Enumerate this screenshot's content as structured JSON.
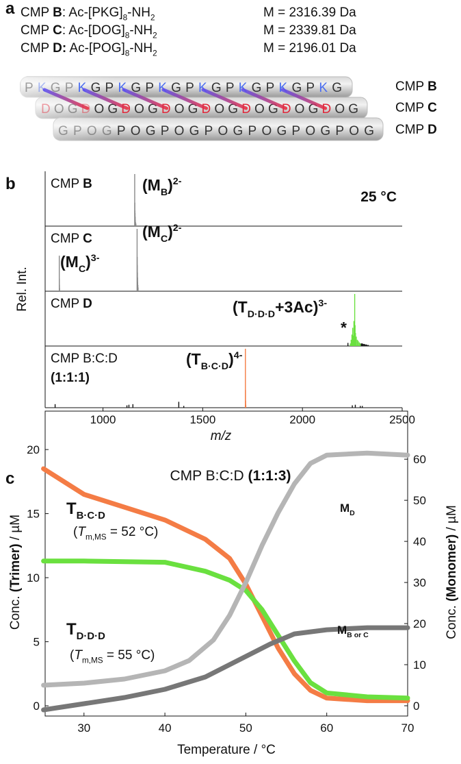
{
  "panel_labels": [
    "a",
    "b",
    "c"
  ],
  "scheme": {
    "rows": [
      {
        "label": [
          {
            "text": "CMP "
          },
          {
            "text": "B",
            "style": "bold"
          },
          {
            "text": ":  Ac-[PKG]"
          },
          {
            "text": "8",
            "style": "sub"
          },
          {
            "text": "-NH"
          },
          {
            "text": "2",
            "style": "sub"
          }
        ],
        "mass": "M = 2316.39 Da",
        "strand": "PKGPKGPKGPKGPKGPKGPKGPKG",
        "tube_label": [
          {
            "text": "CMP "
          },
          {
            "text": "B",
            "style": "bold"
          }
        ]
      },
      {
        "label": [
          {
            "text": "CMP "
          },
          {
            "text": "C",
            "style": "bold"
          },
          {
            "text": ":  Ac-[DOG]"
          },
          {
            "text": "8",
            "style": "sub"
          },
          {
            "text": "-NH"
          },
          {
            "text": "2",
            "style": "sub"
          }
        ],
        "mass": "M = 2339.81 Da",
        "strand": "DOGDOGDOGDOGDOGDOGDOGDOG",
        "tube_label": [
          {
            "text": "CMP "
          },
          {
            "text": "C",
            "style": "bold"
          }
        ]
      },
      {
        "label": [
          {
            "text": "CMP "
          },
          {
            "text": "D:",
            "style": "bold"
          },
          {
            "text": "  Ac-[POG]"
          },
          {
            "text": "8",
            "style": "sub"
          },
          {
            "text": "-NH"
          },
          {
            "text": "2",
            "style": "sub"
          }
        ],
        "mass": "M = 2196.01 Da",
        "strand": "GPOGPOGPOGPOGPOGPOGPOG",
        "tube_label": [
          {
            "text": "CMP "
          },
          {
            "text": "D",
            "style": "bold"
          }
        ]
      }
    ]
  },
  "chart_data": [
    {
      "type": "stem",
      "x_label": "m/z",
      "y_label": "Rel. Int.",
      "condition": "25 °C",
      "xlim": [
        710,
        2500
      ],
      "xticks": [
        1000,
        1500,
        2000,
        2500
      ],
      "ylim": [
        0,
        100
      ],
      "panels": [
        {
          "label": [
            [
              {
                "text": "CMP "
              },
              {
                "text": "B",
                "style": "bold"
              }
            ]
          ],
          "series": [
            {
              "color": "#888888",
              "x": [
                1159,
                1159.6,
                1160.2,
                1160.8,
                1161.4,
                1162,
                1163,
                1165
              ],
              "values": [
                100,
                45,
                30,
                25,
                18,
                12,
                8,
                5
              ]
            }
          ],
          "annotations": [
            [
              {
                "text": "(M"
              },
              {
                "text": "B",
                "style": "sub"
              },
              {
                "text": ")"
              },
              {
                "text": "2-",
                "style": "sup"
              }
            ]
          ]
        },
        {
          "label": [
            [
              {
                "text": "CMP "
              },
              {
                "text": "C",
                "style": "bold"
              }
            ]
          ],
          "series": [
            {
              "color": "#888888",
              "x": [
                780.9,
                781.3,
                781.7,
                782.1
              ],
              "values": [
                57,
                20,
                10,
                5
              ]
            },
            {
              "color": "#888888",
              "x": [
                1171,
                1171.6,
                1172.2,
                1172.8,
                1173.4,
                1174,
                1175,
                1176
              ],
              "values": [
                100,
                55,
                42,
                30,
                22,
                15,
                10,
                6
              ]
            }
          ],
          "annotations": [
            [
              {
                "text": "(M"
              },
              {
                "text": "C",
                "style": "sub"
              },
              {
                "text": ")"
              },
              {
                "text": "3-",
                "style": "sup"
              }
            ],
            [
              {
                "text": "(M"
              },
              {
                "text": "C",
                "style": "sub"
              },
              {
                "text": ")"
              },
              {
                "text": "2-",
                "style": "sup"
              }
            ]
          ]
        },
        {
          "label": [
            [
              {
                "text": "CMP "
              },
              {
                "text": "D",
                "style": "bold"
              }
            ]
          ],
          "series": [
            {
              "color": "#6ae03f",
              "x": [
                2240,
                2244,
                2248,
                2252,
                2255,
                2258,
                2260,
                2262,
                2264,
                2266,
                2270,
                2275,
                2280,
                2285,
                2290
              ],
              "values": [
                5,
                12,
                22,
                35,
                20,
                48,
                30,
                100,
                40,
                25,
                18,
                12,
                10,
                7,
                5
              ]
            },
            {
              "color": "#111111",
              "x": [
                2228,
                2295,
                2300,
                2305,
                2310,
                2315,
                2320,
                2325,
                2330
              ],
              "values": [
                6,
                5,
                5,
                4,
                4,
                3,
                3,
                2,
                2
              ]
            }
          ],
          "annotations": [
            [
              {
                "text": "(T"
              },
              {
                "text": "D·D·D",
                "style": "sub"
              },
              {
                "text": "+3Ac)"
              },
              {
                "text": "3-",
                "style": "sup"
              }
            ],
            [
              {
                "text": "*"
              }
            ]
          ]
        },
        {
          "label": [
            [
              {
                "text": "CMP B:C:D"
              }
            ],
            [
              {
                "text": "(1:1:1)",
                "style": "bold"
              }
            ]
          ],
          "series": [
            {
              "color": "#f47c45",
              "x": [
                1714,
                1714.5,
                1715,
                1716
              ],
              "values": [
                100,
                30,
                12,
                5
              ]
            },
            {
              "color": "#111111",
              "x": [
                760,
                1120,
                1130,
                1150,
                1380,
                1405,
                2250,
                2265,
                2290,
                2300
              ],
              "values": [
                6,
                4,
                5,
                6,
                10,
                3,
                4,
                5,
                3,
                3
              ]
            }
          ],
          "annotations": [
            [
              {
                "text": "(T"
              },
              {
                "text": "B·C·D",
                "style": "sub"
              },
              {
                "text": ")"
              },
              {
                "text": "4-",
                "style": "sup"
              }
            ]
          ]
        }
      ]
    },
    {
      "type": "line",
      "title": [
        {
          "text": "CMP B:C:D "
        },
        {
          "text": "(1:1:3)",
          "style": "bold"
        }
      ],
      "x_label": [
        {
          "text": "Temperature / °C"
        }
      ],
      "y_label": [
        {
          "text": "Conc. "
        },
        {
          "text": "(Trimer)",
          "style": "bold"
        },
        {
          "text": " / µM"
        }
      ],
      "y2_label": [
        {
          "text": "Conc. "
        },
        {
          "text": "(Monomer)",
          "style": "bold"
        },
        {
          "text": " / µM"
        }
      ],
      "xlim": [
        25.2,
        70
      ],
      "xticks": [
        30,
        40,
        50,
        60,
        70
      ],
      "ylim": [
        -0.8,
        23
      ],
      "yticks": [
        0,
        5,
        10,
        15,
        20
      ],
      "y2lim": [
        -2.5,
        71.7
      ],
      "y2ticks": [
        0,
        10,
        20,
        30,
        40,
        50,
        60
      ],
      "series": [
        {
          "name": [
            {
              "text": "T"
            },
            {
              "text": "B·C·D",
              "style": "sub"
            }
          ],
          "note": [
            {
              "text": "("
            },
            {
              "text": "T",
              "style": "italic"
            },
            {
              "text": "m,MS",
              "style": "sub"
            },
            {
              "text": " = 52 °C)"
            }
          ],
          "color": "#f47c45",
          "axis": "y",
          "x": [
            25,
            30,
            35,
            40,
            45,
            48,
            50,
            52,
            54,
            56,
            58,
            60,
            65,
            70
          ],
          "values": [
            18.5,
            16.5,
            15.5,
            14.5,
            13,
            11.5,
            9.5,
            7,
            4.5,
            2.5,
            1.2,
            0.6,
            0.4,
            0.4
          ]
        },
        {
          "name": [
            {
              "text": "T"
            },
            {
              "text": "D·D·D",
              "style": "sub"
            }
          ],
          "note": [
            {
              "text": "("
            },
            {
              "text": "T",
              "style": "italic"
            },
            {
              "text": "m,MS",
              "style": "sub"
            },
            {
              "text": " = 55 °C)"
            }
          ],
          "color": "#6ae03f",
          "axis": "y",
          "x": [
            25,
            30,
            40,
            45,
            48,
            50,
            52,
            54,
            56,
            58,
            60,
            65,
            70
          ],
          "values": [
            11.3,
            11.3,
            11.2,
            10.5,
            9.8,
            9,
            7.5,
            5.5,
            3.5,
            1.8,
            1,
            0.7,
            0.6
          ]
        },
        {
          "name": [
            {
              "text": "M"
            },
            {
              "text": "D",
              "style": "sub"
            }
          ],
          "color": "#b5b5b5",
          "axis": "y2",
          "x": [
            25,
            30,
            35,
            40,
            43,
            46,
            48,
            50,
            52,
            54,
            56,
            58,
            60,
            65,
            70
          ],
          "values": [
            5,
            5.5,
            6.5,
            8.5,
            11,
            16,
            22,
            30,
            39,
            47,
            54,
            59,
            61,
            61.5,
            61
          ]
        },
        {
          "name": [
            {
              "text": "M"
            },
            {
              "text": "B or C",
              "style": "sub"
            }
          ],
          "color": "#777777",
          "axis": "y2",
          "x": [
            25,
            30,
            35,
            40,
            45,
            50,
            53,
            56,
            60,
            65,
            70
          ],
          "values": [
            -1,
            0.5,
            2,
            4,
            7,
            12,
            15,
            17.5,
            18.5,
            19,
            19
          ]
        }
      ]
    }
  ]
}
